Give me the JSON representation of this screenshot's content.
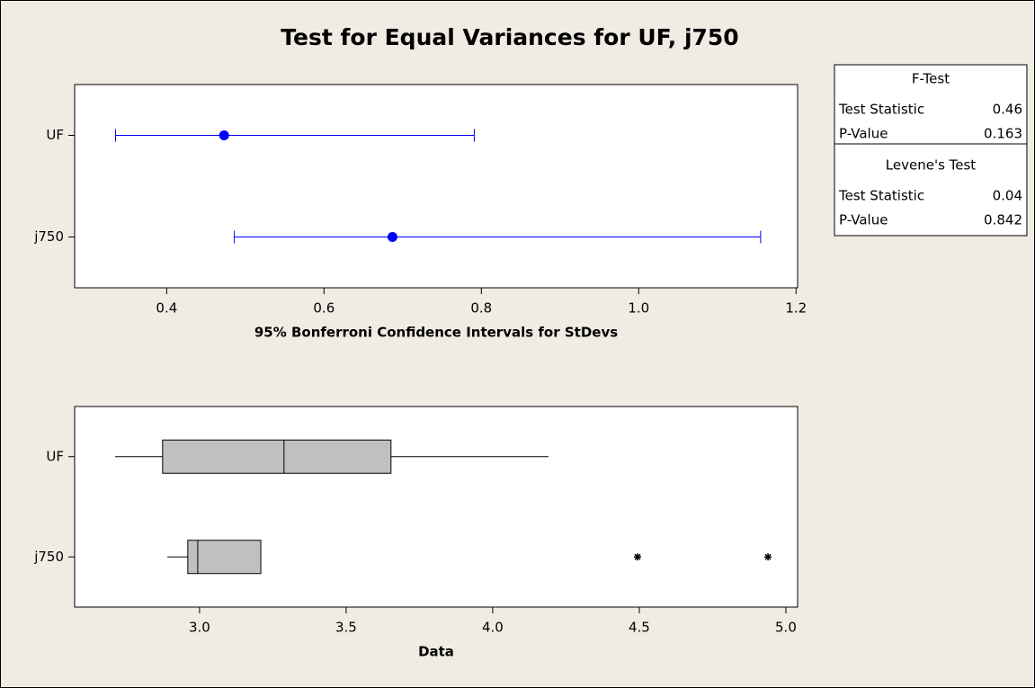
{
  "title": "Test for Equal Variances for UF, j750",
  "chart_data": [
    {
      "type": "interval",
      "categories": [
        "UF",
        "j750"
      ],
      "values": [
        0.473,
        0.687
      ],
      "lower": [
        0.335,
        0.486
      ],
      "upper": [
        0.791,
        1.155
      ],
      "color": "#0000ff",
      "xlabel": "95% Bonferroni Confidence Intervals for StDevs",
      "xlim": [
        0.283,
        1.202
      ],
      "xticks": [
        0.4,
        0.6,
        0.8,
        {
          "value": 1,
          "label": "1.0"
        },
        1.2
      ]
    },
    {
      "type": "box",
      "categories": [
        "UF",
        "j750"
      ],
      "whisker_low": [
        2.712,
        2.89
      ],
      "q1": [
        2.874,
        2.96
      ],
      "median": [
        3.288,
        2.994
      ],
      "q3": [
        3.653,
        3.209
      ],
      "whisker_high": [
        4.19,
        3.209
      ],
      "outliers": [
        [],
        [
          4.494,
          4.939
        ]
      ],
      "color": "#c0c0c0",
      "xlabel": "Data",
      "xlim": [
        2.574,
        5.04
      ],
      "xticks": [
        {
          "value": 3,
          "label": "3.0"
        },
        3.5,
        {
          "value": 4,
          "label": "4.0"
        },
        4.5,
        {
          "value": 5,
          "label": "5.0"
        }
      ]
    }
  ],
  "tests": [
    {
      "name": "F-Test",
      "rows": [
        {
          "label": "Test Statistic",
          "value": 0.46
        },
        {
          "label": "P-Value",
          "value": 0.163
        }
      ]
    },
    {
      "name": "Levene's Test",
      "rows": [
        {
          "label": "Test Statistic",
          "value": 0.04
        },
        {
          "label": "P-Value",
          "value": 0.842
        }
      ]
    }
  ]
}
